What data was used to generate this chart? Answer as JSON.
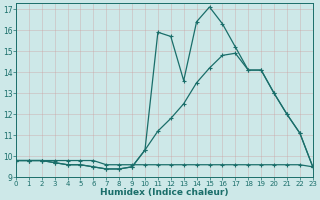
{
  "xlabel": "Humidex (Indice chaleur)",
  "xlim": [
    0,
    23
  ],
  "ylim": [
    9,
    17.3
  ],
  "yticks": [
    9,
    10,
    11,
    12,
    13,
    14,
    15,
    16,
    17
  ],
  "xticks": [
    0,
    1,
    2,
    3,
    4,
    5,
    6,
    7,
    8,
    9,
    10,
    11,
    12,
    13,
    14,
    15,
    16,
    17,
    18,
    19,
    20,
    21,
    22,
    23
  ],
  "bg_color": "#cde8e8",
  "line_color": "#1a6e6a",
  "grid_color": "#b0cccc",
  "line1_x": [
    0,
    1,
    2,
    3,
    4,
    5,
    6,
    7,
    8,
    9,
    10,
    11,
    12,
    13,
    14,
    15,
    16,
    17,
    18,
    19,
    20,
    21,
    22,
    23
  ],
  "line1_y": [
    9.8,
    9.8,
    9.8,
    9.8,
    9.8,
    9.8,
    9.8,
    9.6,
    9.6,
    9.6,
    9.6,
    9.6,
    9.6,
    9.6,
    9.6,
    9.6,
    9.6,
    9.6,
    9.6,
    9.6,
    9.6,
    9.6,
    9.6,
    9.5
  ],
  "line2_x": [
    0,
    1,
    2,
    3,
    4,
    5,
    6,
    7,
    8,
    9,
    10,
    11,
    12,
    13,
    14,
    15,
    16,
    17,
    18,
    19,
    20,
    21,
    22,
    23
  ],
  "line2_y": [
    9.8,
    9.8,
    9.8,
    9.7,
    9.6,
    9.6,
    9.5,
    9.4,
    9.4,
    9.5,
    10.3,
    11.2,
    11.8,
    12.5,
    13.5,
    14.2,
    14.8,
    14.9,
    14.1,
    14.1,
    13.0,
    12.0,
    11.1,
    9.5
  ],
  "line3_x": [
    0,
    1,
    2,
    3,
    4,
    5,
    6,
    7,
    8,
    9,
    10,
    11,
    12,
    13,
    14,
    15,
    16,
    17,
    18,
    19,
    20,
    21,
    22,
    23
  ],
  "line3_y": [
    9.8,
    9.8,
    9.8,
    9.7,
    9.6,
    9.6,
    9.5,
    9.4,
    9.4,
    9.5,
    10.3,
    15.9,
    15.7,
    13.6,
    16.4,
    17.1,
    16.3,
    15.2,
    14.1,
    14.1,
    13.0,
    12.0,
    11.1,
    9.5
  ]
}
